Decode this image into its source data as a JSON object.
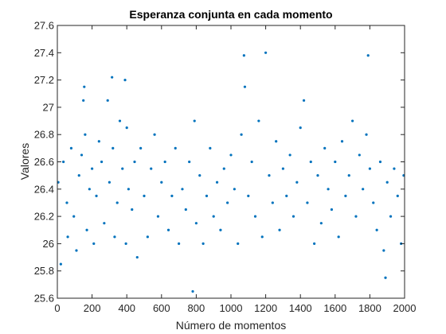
{
  "chart_data": {
    "type": "scatter",
    "title": "Esperanza conjunta en cada momento",
    "xlabel": "Número de momentos",
    "ylabel": "Valores",
    "xlim": [
      0,
      2000
    ],
    "ylim": [
      25.6,
      27.6
    ],
    "xticks": [
      "0",
      "200",
      "400",
      "600",
      "800",
      "1000",
      "1200",
      "1400",
      "1600",
      "1800",
      "2000"
    ],
    "yticks": [
      "25.6",
      "25.8",
      "26",
      "26.2",
      "26.4",
      "26.6",
      "26.8",
      "27",
      "27.2",
      "27.4",
      "27.6"
    ],
    "grid": false,
    "legend": "none",
    "marker_color": "#0072BD",
    "series": [
      {
        "x": [
          5,
          20,
          35,
          55,
          60,
          80,
          95,
          110,
          125,
          140,
          150,
          155,
          160,
          170,
          185,
          200,
          210,
          225,
          240,
          255,
          270,
          290,
          300,
          315,
          320,
          330,
          345,
          360,
          375,
          390,
          395,
          400,
          410,
          430,
          445,
          460,
          480,
          500,
          520,
          540,
          560,
          580,
          600,
          620,
          640,
          660,
          680,
          700,
          720,
          740,
          760,
          780,
          790,
          800,
          820,
          840,
          860,
          880,
          900,
          920,
          940,
          960,
          980,
          1000,
          1020,
          1040,
          1060,
          1075,
          1080,
          1100,
          1120,
          1140,
          1160,
          1180,
          1200,
          1220,
          1240,
          1260,
          1280,
          1300,
          1320,
          1340,
          1360,
          1380,
          1400,
          1420,
          1440,
          1460,
          1480,
          1500,
          1520,
          1540,
          1560,
          1580,
          1600,
          1620,
          1640,
          1660,
          1680,
          1700,
          1720,
          1740,
          1760,
          1780,
          1790,
          1800,
          1820,
          1840,
          1860,
          1880,
          1890,
          1900,
          1920,
          1940,
          1960,
          1980,
          1995
        ],
        "y": [
          26.45,
          25.85,
          26.6,
          26.3,
          26.05,
          26.7,
          26.2,
          25.95,
          26.5,
          26.65,
          27.05,
          27.15,
          26.8,
          26.1,
          26.4,
          26.55,
          26.0,
          26.35,
          26.75,
          26.6,
          26.15,
          27.05,
          26.45,
          27.22,
          26.7,
          26.05,
          26.3,
          26.9,
          26.55,
          27.2,
          26.0,
          26.85,
          26.4,
          26.25,
          26.6,
          25.9,
          26.7,
          26.35,
          26.05,
          26.55,
          26.8,
          26.2,
          26.45,
          26.6,
          26.1,
          26.35,
          26.7,
          26.0,
          26.4,
          26.25,
          26.6,
          25.65,
          26.9,
          26.15,
          26.5,
          26.0,
          26.35,
          26.7,
          26.2,
          26.45,
          26.1,
          26.55,
          26.3,
          26.65,
          26.4,
          26.0,
          26.8,
          27.38,
          27.15,
          26.35,
          26.6,
          26.2,
          26.9,
          26.05,
          27.4,
          26.5,
          26.3,
          26.75,
          26.1,
          26.55,
          26.35,
          26.65,
          26.2,
          26.45,
          26.85,
          27.05,
          26.3,
          26.6,
          26.0,
          26.5,
          26.15,
          26.7,
          26.4,
          26.25,
          26.6,
          26.05,
          26.75,
          26.35,
          26.5,
          26.9,
          26.2,
          26.65,
          26.4,
          26.8,
          27.38,
          26.55,
          26.3,
          26.1,
          26.6,
          25.95,
          25.75,
          26.45,
          26.2,
          26.55,
          26.35,
          26.0,
          26.5
        ]
      }
    ]
  }
}
